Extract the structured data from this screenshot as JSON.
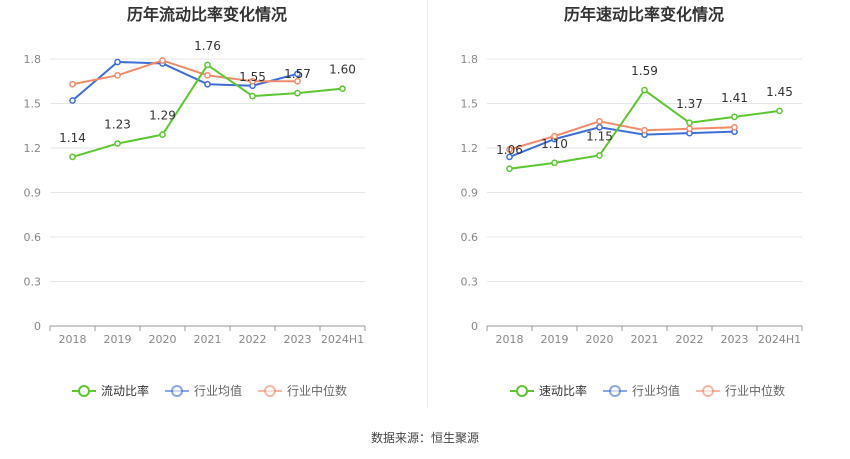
{
  "source_label": "数据来源：恒生聚源",
  "colors": {
    "company": "#5cc72f",
    "industry_avg": "#3d6fd6",
    "industry_median": "#f28b6a",
    "grid": "#e6e6e6",
    "axis": "#999999",
    "tick_text": "#888888",
    "title": "#333333"
  },
  "chart_data": [
    {
      "type": "line",
      "title": "历年流动比率变化情况",
      "categories": [
        "2018",
        "2019",
        "2020",
        "2021",
        "2022",
        "2023",
        "2024H1"
      ],
      "yticks": [
        "0",
        "0.3",
        "0.6",
        "0.9",
        "1.2",
        "1.5",
        "1.8"
      ],
      "ylim": [
        0,
        1.8
      ],
      "grid": true,
      "legend_position": "bottom",
      "series": [
        {
          "name": "流动比率",
          "key": "company",
          "values": [
            1.14,
            1.23,
            1.29,
            1.76,
            1.55,
            1.57,
            1.6
          ],
          "labels": [
            "1.14",
            "1.23",
            "1.29",
            "1.76",
            "1.55",
            "1.57",
            "1.60"
          ]
        },
        {
          "name": "行业均值",
          "key": "industry_avg",
          "values": [
            1.52,
            1.78,
            1.77,
            1.63,
            1.62,
            1.7,
            null
          ]
        },
        {
          "name": "行业中位数",
          "key": "industry_median",
          "values": [
            1.63,
            1.69,
            1.79,
            1.69,
            1.65,
            1.65,
            null
          ]
        }
      ]
    },
    {
      "type": "line",
      "title": "历年速动比率变化情况",
      "categories": [
        "2018",
        "2019",
        "2020",
        "2021",
        "2022",
        "2023",
        "2024H1"
      ],
      "yticks": [
        "0",
        "0.3",
        "0.6",
        "0.9",
        "1.2",
        "1.5",
        "1.8"
      ],
      "ylim": [
        0,
        1.8
      ],
      "grid": true,
      "legend_position": "bottom",
      "series": [
        {
          "name": "速动比率",
          "key": "company",
          "values": [
            1.06,
            1.1,
            1.15,
            1.59,
            1.37,
            1.41,
            1.45
          ],
          "labels": [
            "1.06",
            "1.10",
            "1.15",
            "1.59",
            "1.37",
            "1.41",
            "1.45"
          ]
        },
        {
          "name": "行业均值",
          "key": "industry_avg",
          "values": [
            1.14,
            1.26,
            1.34,
            1.29,
            1.3,
            1.31,
            null
          ]
        },
        {
          "name": "行业中位数",
          "key": "industry_median",
          "values": [
            1.19,
            1.28,
            1.38,
            1.32,
            1.33,
            1.34,
            null
          ]
        }
      ]
    }
  ]
}
